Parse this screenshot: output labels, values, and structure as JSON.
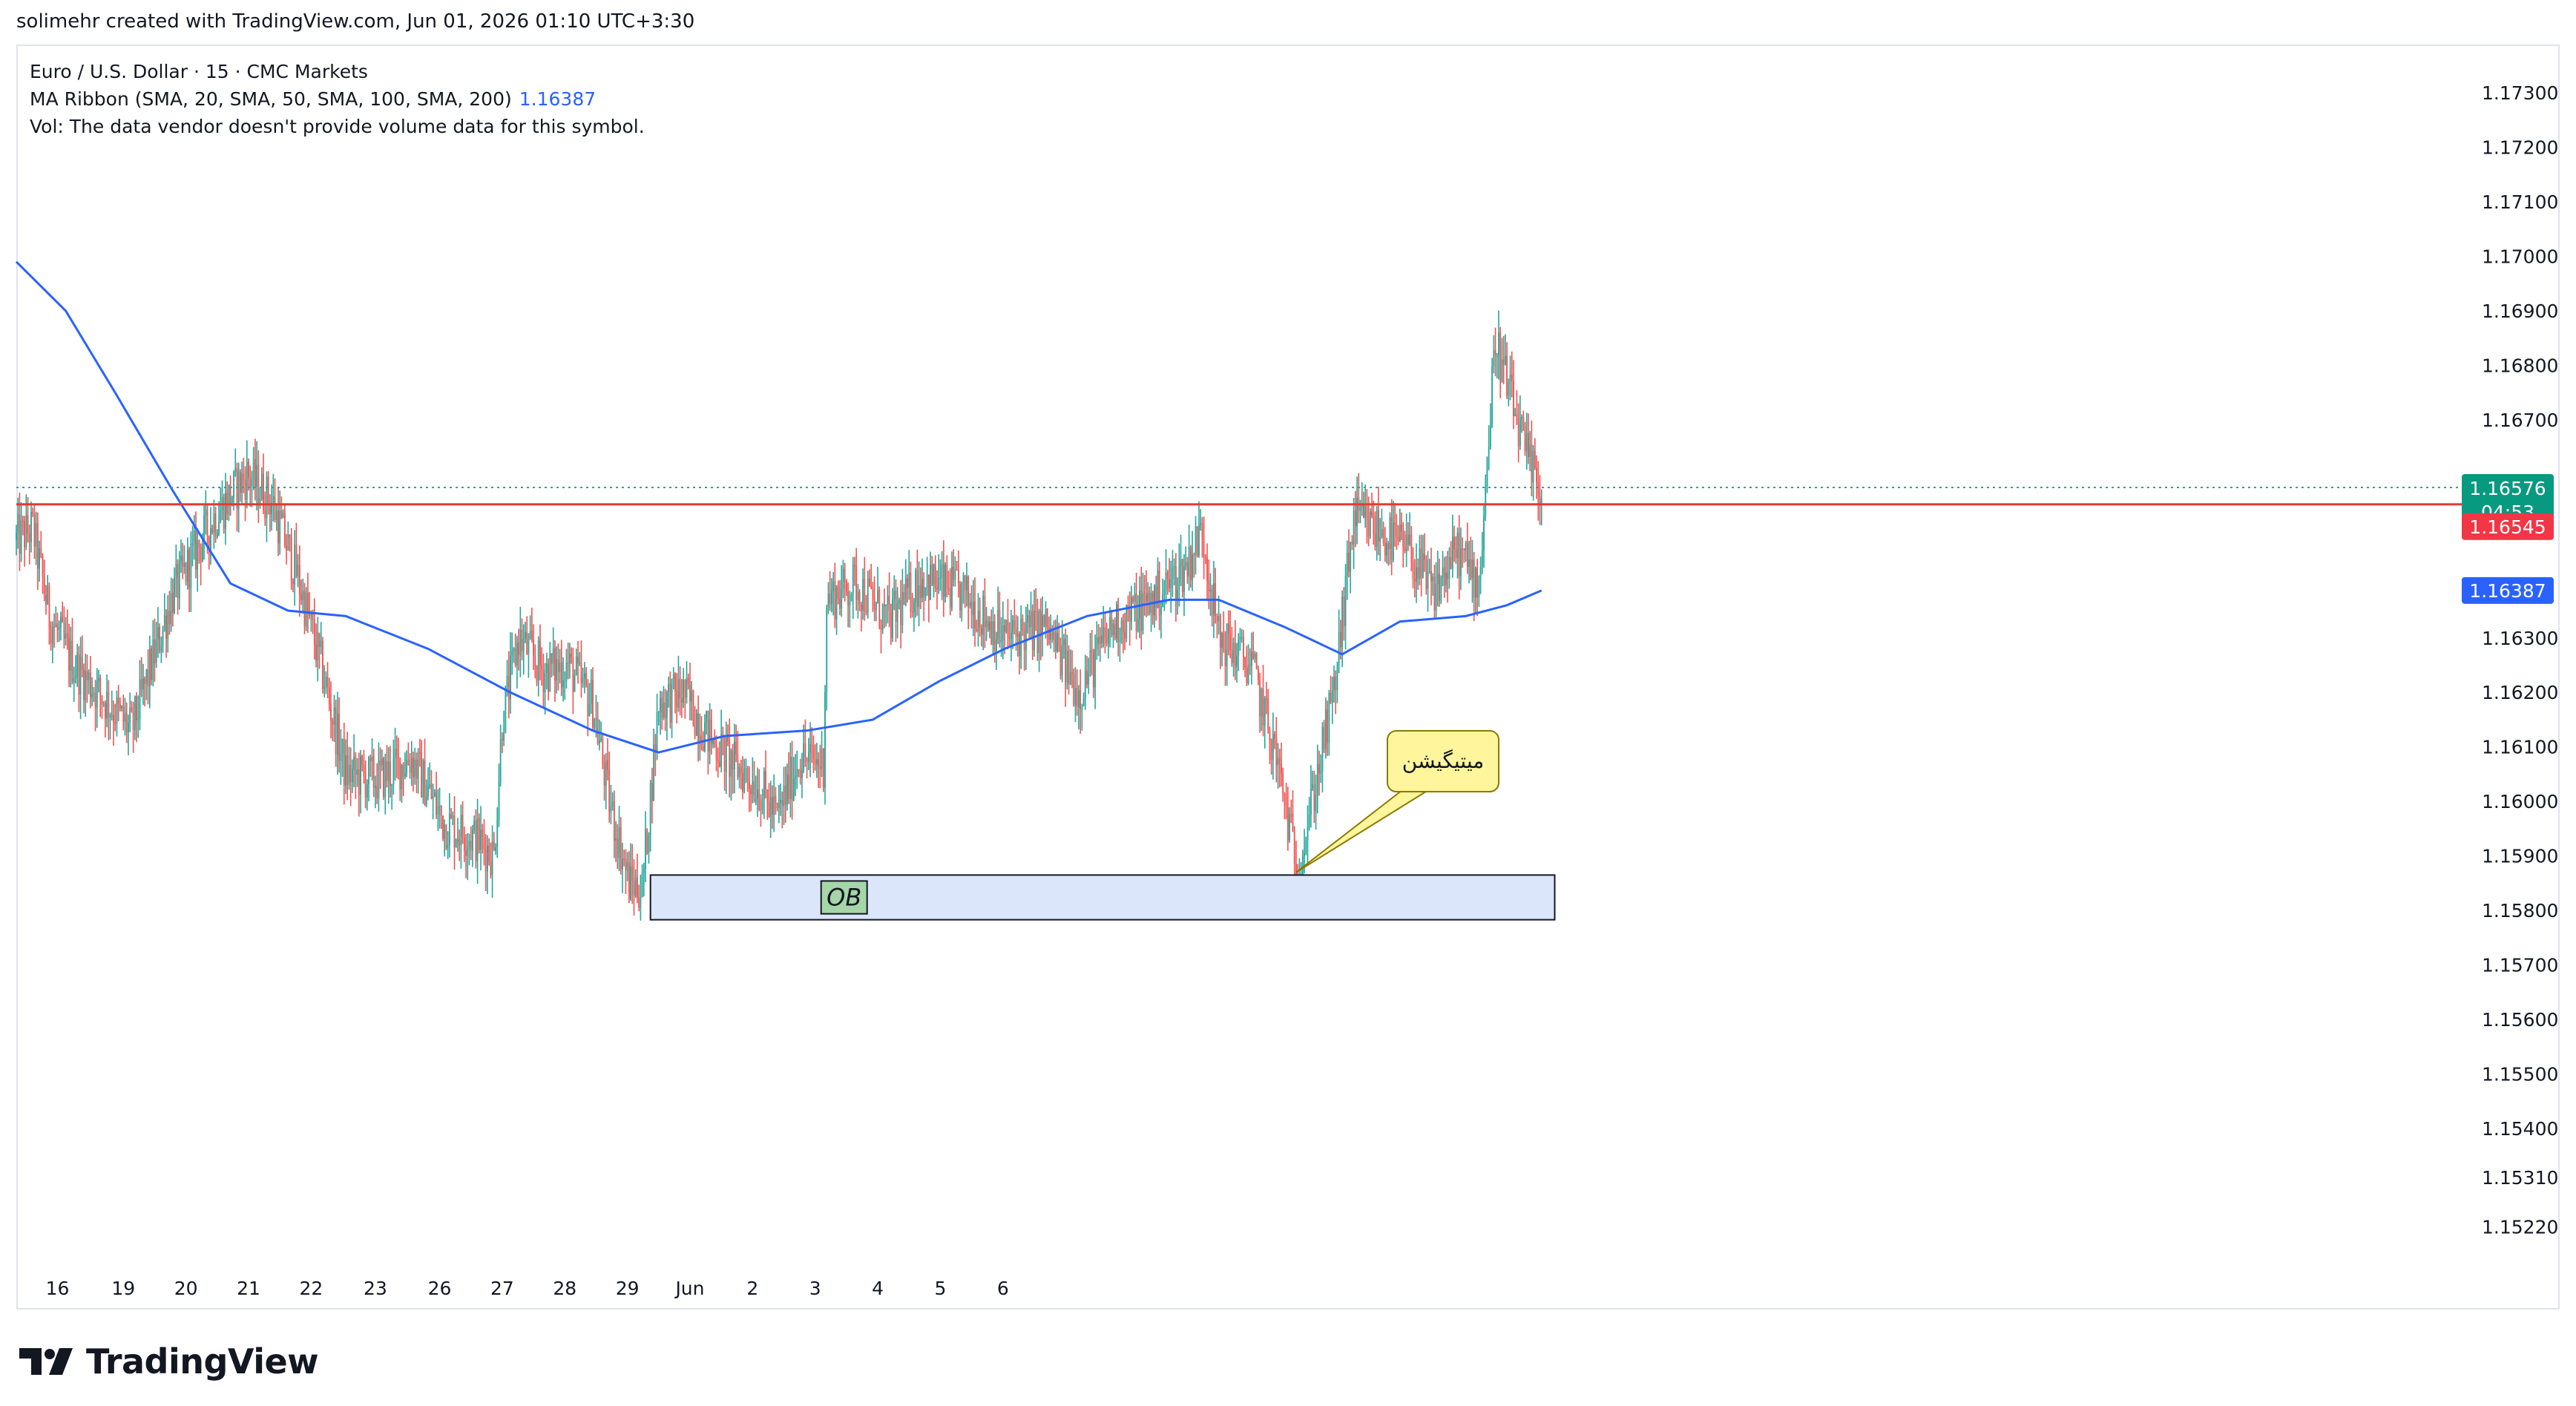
{
  "header": {
    "credit": "solimehr created with TradingView.com, Jun 01, 2026 01:10 UTC+3:30"
  },
  "legend": {
    "symbol_line": "Euro / U.S. Dollar · 15 · CMC Markets",
    "ma_label": "MA Ribbon (SMA, 20, SMA, 50, SMA, 100, SMA, 200)",
    "ma_value": "1.16387",
    "vol_line": "Vol: The data vendor doesn't provide volume data for this symbol."
  },
  "footer": {
    "brand": "TradingView"
  },
  "colors": {
    "up": "#26a69a",
    "down": "#ef5350",
    "ma": "#2962ff",
    "level": "#e53935",
    "ob_fill": "#dbe6fb",
    "callout_fill": "#fff59d",
    "badge_last": "#089981",
    "badge_level": "#f23645",
    "badge_ma": "#2962ff"
  },
  "chart_data": {
    "type": "candlestick",
    "symbol": "EURUSD",
    "timeframe": "15",
    "x_tick_labels": [
      "16",
      "19",
      "20",
      "21",
      "22",
      "23",
      "26",
      "27",
      "28",
      "29",
      "Jun",
      "2",
      "3",
      "4",
      "5",
      "6"
    ],
    "y_tick_labels": [
      "1.17300",
      "1.17200",
      "1.17100",
      "1.17000",
      "1.16900",
      "1.16800",
      "1.16700",
      "1.16300",
      "1.16200",
      "1.16100",
      "1.16000",
      "1.15900",
      "1.15800",
      "1.15700",
      "1.15600",
      "1.15500",
      "1.15400",
      "1.15310",
      "1.15220"
    ],
    "ylim": [
      1.1517,
      1.17345
    ],
    "price_path": [
      {
        "x": 0,
        "y": 1.1648
      },
      {
        "x": 10,
        "y": 1.165
      },
      {
        "x": 20,
        "y": 1.1634
      },
      {
        "x": 35,
        "y": 1.1625
      },
      {
        "x": 50,
        "y": 1.162
      },
      {
        "x": 70,
        "y": 1.1613
      },
      {
        "x": 95,
        "y": 1.1638
      },
      {
        "x": 120,
        "y": 1.1652
      },
      {
        "x": 140,
        "y": 1.166
      },
      {
        "x": 155,
        "y": 1.1655
      },
      {
        "x": 170,
        "y": 1.1642
      },
      {
        "x": 185,
        "y": 1.1625
      },
      {
        "x": 200,
        "y": 1.1605
      },
      {
        "x": 220,
        "y": 1.1604
      },
      {
        "x": 240,
        "y": 1.1608
      },
      {
        "x": 260,
        "y": 1.1596
      },
      {
        "x": 280,
        "y": 1.1593
      },
      {
        "x": 290,
        "y": 1.159
      },
      {
        "x": 295,
        "y": 1.1615
      },
      {
        "x": 305,
        "y": 1.163
      },
      {
        "x": 320,
        "y": 1.1624
      },
      {
        "x": 335,
        "y": 1.1625
      },
      {
        "x": 350,
        "y": 1.1618
      },
      {
        "x": 360,
        "y": 1.16
      },
      {
        "x": 372,
        "y": 1.1585
      },
      {
        "x": 380,
        "y": 1.1584
      },
      {
        "x": 390,
        "y": 1.1618
      },
      {
        "x": 405,
        "y": 1.162
      },
      {
        "x": 420,
        "y": 1.1612
      },
      {
        "x": 435,
        "y": 1.1607
      },
      {
        "x": 450,
        "y": 1.1603
      },
      {
        "x": 462,
        "y": 1.1597
      },
      {
        "x": 475,
        "y": 1.1608
      },
      {
        "x": 490,
        "y": 1.1607
      },
      {
        "x": 492,
        "y": 1.1637
      },
      {
        "x": 510,
        "y": 1.164
      },
      {
        "x": 530,
        "y": 1.1633
      },
      {
        "x": 550,
        "y": 1.1641
      },
      {
        "x": 575,
        "y": 1.1638
      },
      {
        "x": 600,
        "y": 1.163
      },
      {
        "x": 625,
        "y": 1.1632
      },
      {
        "x": 645,
        "y": 1.162
      },
      {
        "x": 665,
        "y": 1.1632
      },
      {
        "x": 690,
        "y": 1.1637
      },
      {
        "x": 710,
        "y": 1.1643
      },
      {
        "x": 720,
        "y": 1.165
      },
      {
        "x": 730,
        "y": 1.163
      },
      {
        "x": 750,
        "y": 1.1625
      },
      {
        "x": 765,
        "y": 1.1608
      },
      {
        "x": 778,
        "y": 1.1587
      },
      {
        "x": 790,
        "y": 1.1605
      },
      {
        "x": 800,
        "y": 1.162
      },
      {
        "x": 812,
        "y": 1.1652
      },
      {
        "x": 825,
        "y": 1.165
      },
      {
        "x": 845,
        "y": 1.1646
      },
      {
        "x": 860,
        "y": 1.1638
      },
      {
        "x": 875,
        "y": 1.1646
      },
      {
        "x": 888,
        "y": 1.164
      },
      {
        "x": 898,
        "y": 1.1685
      },
      {
        "x": 908,
        "y": 1.1673
      },
      {
        "x": 918,
        "y": 1.1662
      },
      {
        "x": 926,
        "y": 1.1657
      }
    ],
    "ma_series": {
      "name": "MA Ribbon",
      "path": [
        {
          "x": 0,
          "y": 1.1699
        },
        {
          "x": 30,
          "y": 1.169
        },
        {
          "x": 60,
          "y": 1.1675
        },
        {
          "x": 95,
          "y": 1.1657
        },
        {
          "x": 130,
          "y": 1.164
        },
        {
          "x": 165,
          "y": 1.1635
        },
        {
          "x": 200,
          "y": 1.1634
        },
        {
          "x": 250,
          "y": 1.1628
        },
        {
          "x": 300,
          "y": 1.162
        },
        {
          "x": 350,
          "y": 1.1613
        },
        {
          "x": 390,
          "y": 1.1609
        },
        {
          "x": 430,
          "y": 1.1612
        },
        {
          "x": 480,
          "y": 1.1613
        },
        {
          "x": 520,
          "y": 1.1615
        },
        {
          "x": 560,
          "y": 1.1622
        },
        {
          "x": 600,
          "y": 1.1628
        },
        {
          "x": 650,
          "y": 1.1634
        },
        {
          "x": 700,
          "y": 1.1637
        },
        {
          "x": 730,
          "y": 1.1637
        },
        {
          "x": 770,
          "y": 1.1632
        },
        {
          "x": 805,
          "y": 1.1627
        },
        {
          "x": 840,
          "y": 1.1633
        },
        {
          "x": 880,
          "y": 1.1634
        },
        {
          "x": 905,
          "y": 1.1636
        },
        {
          "x": 926,
          "y": 1.16387
        }
      ]
    },
    "horizontal_level": 1.16545,
    "last_price": 1.16576,
    "order_block": {
      "label": "OB",
      "x_start": 385,
      "x_end": 934,
      "y_top": 1.15865,
      "y_bottom": 1.15783
    },
    "callout": {
      "text": "میتیگیشن",
      "anchor_x": 777,
      "anchor_y": 1.1587
    },
    "price_badges": [
      {
        "value": "1.16576",
        "sub": "04:53",
        "role": "last"
      },
      {
        "value": "1.16545",
        "role": "level"
      },
      {
        "value": "1.16387",
        "role": "ma"
      }
    ]
  }
}
